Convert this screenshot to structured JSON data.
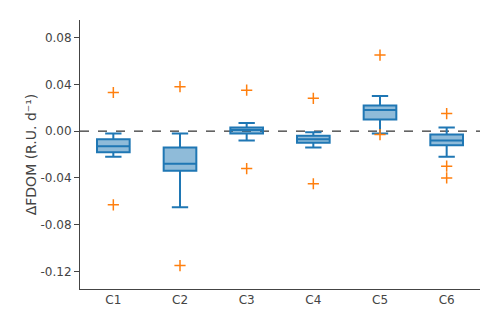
{
  "chart_data": {
    "type": "box",
    "categories": [
      "C1",
      "C2",
      "C3",
      "C4",
      "C5",
      "C6"
    ],
    "boxes": [
      {
        "label": "C1",
        "q1": -0.018,
        "median": -0.013,
        "q3": -0.007,
        "whislo": -0.022,
        "whishi": -0.002,
        "fliers": [
          0.033,
          -0.063
        ]
      },
      {
        "label": "C2",
        "q1": -0.034,
        "median": -0.028,
        "q3": -0.014,
        "whislo": -0.065,
        "whishi": -0.002,
        "fliers": [
          0.038,
          -0.115
        ]
      },
      {
        "label": "C3",
        "q1": -0.002,
        "median": 0.001,
        "q3": 0.003,
        "whislo": -0.008,
        "whishi": 0.007,
        "fliers": [
          0.035,
          -0.032
        ]
      },
      {
        "label": "C4",
        "q1": -0.01,
        "median": -0.007,
        "q3": -0.004,
        "whislo": -0.014,
        "whishi": -0.001,
        "fliers": [
          0.028,
          -0.045
        ]
      },
      {
        "label": "C5",
        "q1": 0.01,
        "median": 0.018,
        "q3": 0.022,
        "whislo": -0.002,
        "whishi": 0.03,
        "fliers": [
          0.065,
          -0.003
        ]
      },
      {
        "label": "C6",
        "q1": -0.012,
        "median": -0.008,
        "q3": -0.003,
        "whislo": -0.022,
        "whishi": 0.003,
        "fliers": [
          0.015,
          -0.04,
          -0.03
        ]
      }
    ],
    "ylabel": "ΔFDOM (R.U. d⁻¹)",
    "ylim": [
      -0.135,
      0.095
    ],
    "yticks": [
      -0.12,
      -0.08,
      -0.04,
      {
        "value": 0.0,
        "label": "0.00"
      },
      0.04,
      0.08
    ],
    "hline": {
      "y": 0.0,
      "line_style": "dashed",
      "color": "black"
    },
    "marker": "+",
    "grid": false
  }
}
